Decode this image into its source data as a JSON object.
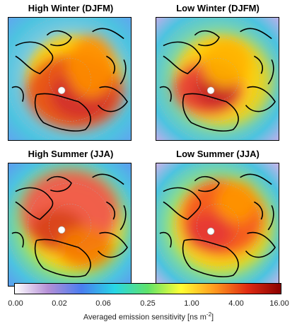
{
  "chart_data": [
    {
      "type": "heatmap",
      "title": "High Winter (DJFM)",
      "map": "polar stereographic Arctic, coastlines in black, white marker at station"
    },
    {
      "type": "heatmap",
      "title": "Low Winter (DJFM)",
      "map": "polar stereographic Arctic, coastlines in black, white marker at station"
    },
    {
      "type": "heatmap",
      "title": "High Summer (JJA)",
      "map": "polar stereographic Arctic, coastlines in black, white marker at station"
    },
    {
      "type": "heatmap",
      "title": "Low Summer (JJA)",
      "map": "polar stereographic Arctic, coastlines in black, white marker at station"
    }
  ],
  "colorbar": {
    "ticks": [
      "0.00",
      "0.02",
      "0.06",
      "0.25",
      "1.00",
      "4.00",
      "16.00"
    ],
    "label_main": "Averaged emission sensitivity [ns m",
    "label_sup": "-2",
    "label_end": "]",
    "colors": [
      "#ffffff",
      "#b58fd6",
      "#4a7df0",
      "#27d6e6",
      "#5fe36a",
      "#ffff33",
      "#ff9a1f",
      "#e02b12",
      "#8b0000"
    ]
  }
}
